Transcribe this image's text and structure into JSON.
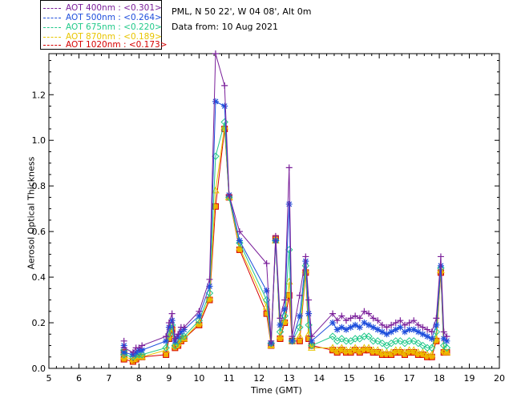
{
  "header": {
    "location": "PML, N 50 22', W 04 08', Alt 0m",
    "date": "Data from: 10 Aug 2021"
  },
  "legend": [
    {
      "label": "AOT  400nm : <0.301>",
      "color": "#7a1f9a"
    },
    {
      "label": "AOT  500nm : <0.264>",
      "color": "#1f4fdc"
    },
    {
      "label": "AOT  675nm : <0.220>",
      "color": "#22c98a"
    },
    {
      "label": "AOT  870nm : <0.189>",
      "color": "#e8c500"
    },
    {
      "label": "AOT 1020nm : <0.173>",
      "color": "#d60000"
    }
  ],
  "chart_data": {
    "type": "line",
    "xlabel": "Time (GMT)",
    "ylabel": "Aerosol Optical Thickness",
    "xlim": [
      5,
      20
    ],
    "ylim": [
      0,
      1.38
    ],
    "xticks": [
      5,
      6,
      7,
      8,
      9,
      10,
      11,
      12,
      13,
      14,
      15,
      16,
      17,
      18,
      19,
      20
    ],
    "yticks": [
      0.0,
      0.2,
      0.4,
      0.6,
      0.8,
      1.0,
      1.2
    ],
    "x": [
      7.5,
      7.5,
      7.8,
      7.9,
      8.0,
      8.1,
      8.9,
      9.0,
      9.1,
      9.2,
      9.3,
      9.4,
      9.5,
      10.0,
      10.35,
      10.55,
      10.85,
      11.0,
      11.35,
      12.25,
      12.4,
      12.55,
      12.7,
      12.85,
      13.0,
      13.1,
      13.35,
      13.55,
      13.65,
      13.75,
      14.45,
      14.6,
      14.75,
      14.9,
      15.05,
      15.2,
      15.35,
      15.5,
      15.65,
      15.8,
      15.95,
      16.1,
      16.25,
      16.4,
      16.55,
      16.7,
      16.85,
      17.0,
      17.15,
      17.3,
      17.45,
      17.6,
      17.75,
      17.9,
      18.05,
      18.15,
      18.25
    ],
    "series": [
      {
        "name": "AOT  400nm",
        "color": "#7a1f9a",
        "marker": "plus",
        "values": [
          0.12,
          0.09,
          0.07,
          0.09,
          0.09,
          0.1,
          0.14,
          0.2,
          0.24,
          0.13,
          0.15,
          0.18,
          0.18,
          0.25,
          0.39,
          1.38,
          1.24,
          0.76,
          0.6,
          0.46,
          0.12,
          0.58,
          0.22,
          0.3,
          0.88,
          0.14,
          0.32,
          0.49,
          0.3,
          0.14,
          0.24,
          0.21,
          0.23,
          0.21,
          0.22,
          0.23,
          0.22,
          0.25,
          0.24,
          0.22,
          0.21,
          0.19,
          0.18,
          0.19,
          0.2,
          0.21,
          0.19,
          0.2,
          0.21,
          0.19,
          0.18,
          0.17,
          0.16,
          0.22,
          0.49,
          0.16,
          0.14
        ]
      },
      {
        "name": "AOT  500nm",
        "color": "#1f4fdc",
        "marker": "star",
        "values": [
          0.1,
          0.07,
          0.06,
          0.07,
          0.08,
          0.08,
          0.12,
          0.18,
          0.21,
          0.12,
          0.14,
          0.16,
          0.17,
          0.23,
          0.36,
          1.17,
          1.15,
          0.76,
          0.56,
          0.34,
          0.11,
          0.56,
          0.19,
          0.26,
          0.72,
          0.12,
          0.23,
          0.47,
          0.24,
          0.12,
          0.2,
          0.17,
          0.18,
          0.17,
          0.18,
          0.19,
          0.18,
          0.2,
          0.19,
          0.18,
          0.17,
          0.16,
          0.15,
          0.16,
          0.17,
          0.18,
          0.16,
          0.17,
          0.17,
          0.16,
          0.15,
          0.14,
          0.13,
          0.19,
          0.45,
          0.13,
          0.12
        ]
      },
      {
        "name": "AOT  675nm",
        "color": "#22c98a",
        "marker": "diamond",
        "values": [
          0.08,
          0.06,
          0.05,
          0.06,
          0.06,
          0.06,
          0.09,
          0.15,
          0.19,
          0.1,
          0.12,
          0.14,
          0.14,
          0.21,
          0.33,
          0.93,
          1.08,
          0.75,
          0.55,
          0.3,
          0.11,
          0.56,
          0.16,
          0.23,
          0.52,
          0.12,
          0.18,
          0.45,
          0.19,
          0.1,
          0.14,
          0.12,
          0.13,
          0.12,
          0.12,
          0.13,
          0.13,
          0.14,
          0.14,
          0.12,
          0.12,
          0.11,
          0.1,
          0.11,
          0.12,
          0.12,
          0.11,
          0.12,
          0.12,
          0.11,
          0.1,
          0.09,
          0.09,
          0.16,
          0.44,
          0.1,
          0.09
        ]
      },
      {
        "name": "AOT  870nm",
        "color": "#e8c500",
        "marker": "triangle",
        "values": [
          0.07,
          0.05,
          0.04,
          0.05,
          0.05,
          0.05,
          0.08,
          0.14,
          0.18,
          0.1,
          0.11,
          0.13,
          0.13,
          0.2,
          0.31,
          0.78,
          1.06,
          0.75,
          0.53,
          0.27,
          0.1,
          0.56,
          0.14,
          0.21,
          0.38,
          0.12,
          0.14,
          0.43,
          0.15,
          0.09,
          0.09,
          0.08,
          0.09,
          0.08,
          0.08,
          0.09,
          0.08,
          0.09,
          0.09,
          0.08,
          0.08,
          0.07,
          0.07,
          0.07,
          0.08,
          0.08,
          0.07,
          0.08,
          0.08,
          0.07,
          0.07,
          0.06,
          0.06,
          0.13,
          0.43,
          0.08,
          0.07
        ]
      },
      {
        "name": "AOT 1020nm",
        "color": "#d60000",
        "marker": "square",
        "values": [
          0.07,
          0.04,
          0.03,
          0.04,
          0.05,
          0.05,
          0.06,
          0.13,
          0.17,
          0.09,
          0.1,
          0.12,
          0.13,
          0.19,
          0.3,
          0.71,
          1.05,
          0.75,
          0.52,
          0.24,
          0.1,
          0.57,
          0.13,
          0.2,
          0.32,
          0.12,
          0.12,
          0.42,
          0.13,
          0.1,
          0.08,
          0.07,
          0.08,
          0.07,
          0.07,
          0.08,
          0.07,
          0.08,
          0.08,
          0.07,
          0.07,
          0.06,
          0.06,
          0.06,
          0.07,
          0.07,
          0.06,
          0.07,
          0.07,
          0.06,
          0.06,
          0.05,
          0.05,
          0.12,
          0.42,
          0.07,
          0.07
        ]
      }
    ]
  }
}
